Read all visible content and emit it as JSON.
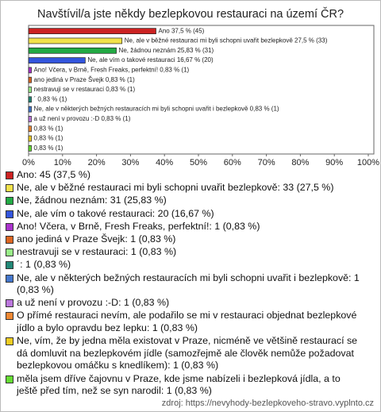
{
  "chart_data": {
    "type": "barh",
    "title": "Navštívil/a jste někdy bezlepkovou restauraci na území ČR?",
    "values": [
      37.5,
      27.5,
      25.83,
      16.67,
      0.83,
      0.83,
      0.83,
      0.83,
      0.83,
      0.83,
      0.83,
      0.83,
      0.83
    ],
    "value_labels": [
      "Ano 37,5 % (45)",
      "Ne, ale v běžné restauraci mi byli schopni uvařit bezlepkově 27,5 % (33)",
      "Ne, žádnou neznám 25,83 % (31)",
      "Ne, ale vím o takové restauraci 16,67 % (20)",
      "Ano! Včera, v Brně, Fresh Freaks, perfektní! 0,83 % (1)",
      "ano jediná v Praze Švejk 0,83 % (1)",
      "nestravuji se v restauraci 0,83 % (1)",
      "´ 0,83 % (1)",
      "Ne, ale v některých bežných restauracích mi byli schopni uvařit i bezlepkově 0,83 % (1)",
      "a už není v provozu :-D 0,83 % (1)",
      "0,83 % (1)",
      "0,83 % (1)",
      "0,83 % (1)"
    ],
    "colors": [
      "#cc2222",
      "#f2e24a",
      "#22aa44",
      "#3355dd",
      "#aa33cc",
      "#dd6622",
      "#99ee88",
      "#228877",
      "#4477cc",
      "#bb77dd",
      "#ee8833",
      "#eecc22",
      "#66dd33"
    ],
    "legend": [
      "Ano: 45 (37,5 %)",
      "Ne, ale v běžné restauraci mi byli schopni uvařit bezlepkově: 33 (27,5 %)",
      "Ne, žádnou neznám: 31 (25,83 %)",
      "Ne, ale vím o takové restauraci: 20 (16,67 %)",
      "Ano! Včera, v Brně, Fresh Freaks, perfektní!: 1 (0,83 %)",
      "ano jediná v Praze Švejk: 1 (0,83 %)",
      "nestravuji se v restauraci: 1 (0,83 %)",
      "´: 1 (0,83 %)",
      "Ne, ale v některých bežných restauracích mi byli schopni uvařit i bezlepkově: 1 (0,83 %)",
      "a už není v provozu :-D: 1 (0,83 %)",
      "O přímé restauraci nevím, ale podařilo se mi v restauraci objednat bezlepkové jídlo a bylo opravdu bez lepku: 1 (0,83 %)",
      "Ne, vím, že by jedna měla existovat v Praze, nicméně ve většině restaurací se dá domluvit na bezlepkovém jídle (samozřejmě ale člověk nemůže požadovat bezlepkovou omáčku s knedlíkem): 1 (0,83 %)",
      "měla jsem dříve čajovnu v Praze, kde jsme nabízeli i bezlepková jídla, a to ještě před tím, než se syn narodil: 1 (0,83 %)"
    ],
    "xlim": [
      0,
      100
    ],
    "xticks": [
      {
        "value": 0,
        "label": "0%"
      },
      {
        "value": 10,
        "label": "10%"
      },
      {
        "value": 20,
        "label": "20%"
      },
      {
        "value": 30,
        "label": "30%"
      },
      {
        "value": 40,
        "label": "40%"
      },
      {
        "value": 50,
        "label": "50%"
      },
      {
        "value": 60,
        "label": "60%"
      },
      {
        "value": 70,
        "label": "70%"
      },
      {
        "value": 80,
        "label": "80%"
      },
      {
        "value": 90,
        "label": "90%"
      },
      {
        "value": 100,
        "label": "100%"
      }
    ],
    "source": "zdroj: https://nevyhody-bezlepkoveho-stravo.vyplnto.cz"
  }
}
